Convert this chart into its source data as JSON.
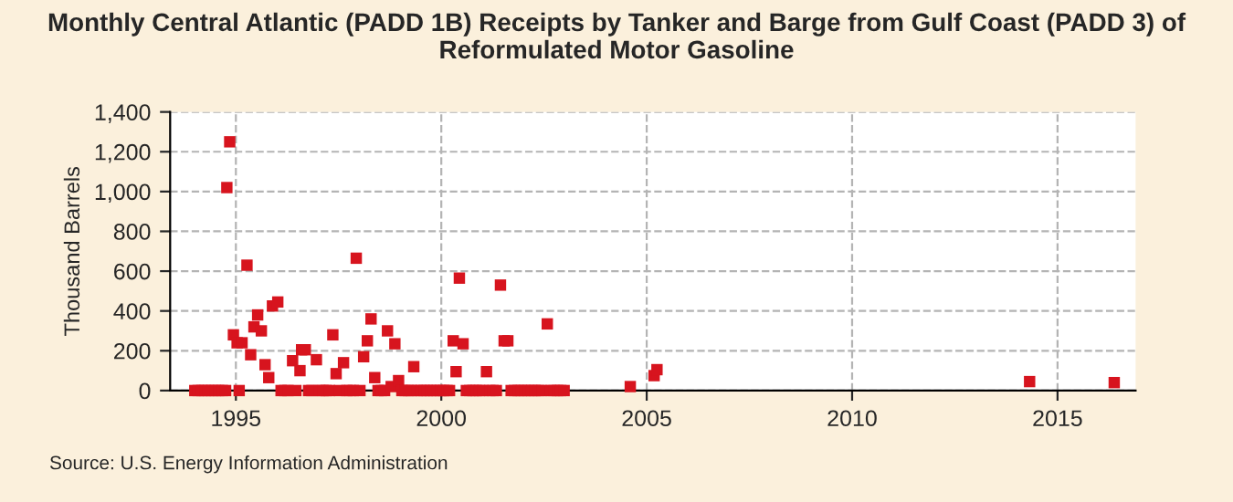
{
  "chart_data": {
    "type": "scatter",
    "title": "Monthly Central Atlantic (PADD 1B) Receipts by Tanker and Barge from Gulf Coast (PADD 3) of Reformulated Motor Gasoline",
    "ylabel": "Thousand Barrels",
    "annotations": [
      "Source: U.S. Energy Information Administration"
    ],
    "series": [
      {
        "color": "#d7141e",
        "x": [
          1994.0,
          1994.08,
          1994.17,
          1994.25,
          1994.33,
          1994.42,
          1994.5,
          1994.58,
          1994.67,
          1994.75,
          1994.78,
          1994.85,
          1994.94,
          1995.03,
          1995.08,
          1995.15,
          1995.27,
          1995.36,
          1995.44,
          1995.53,
          1995.62,
          1995.71,
          1995.8,
          1995.89,
          1996.02,
          1996.1,
          1996.19,
          1996.27,
          1996.38,
          1996.46,
          1996.56,
          1996.6,
          1996.69,
          1996.77,
          1996.85,
          1996.96,
          1997.04,
          1997.12,
          1997.2,
          1997.28,
          1997.36,
          1997.44,
          1997.52,
          1997.62,
          1997.7,
          1997.78,
          1997.86,
          1997.93,
          1998.02,
          1998.11,
          1998.2,
          1998.29,
          1998.38,
          1998.46,
          1998.54,
          1998.62,
          1998.69,
          1998.78,
          1998.87,
          1998.96,
          1999.04,
          1999.12,
          1999.2,
          1999.28,
          1999.33,
          1999.41,
          1999.5,
          1999.58,
          1999.66,
          1999.74,
          1999.82,
          1999.9,
          1999.98,
          2000.06,
          2000.14,
          2000.2,
          2000.29,
          2000.36,
          2000.44,
          2000.53,
          2000.61,
          2000.69,
          2000.77,
          2000.85,
          2000.93,
          2001.01,
          2001.1,
          2001.18,
          2001.26,
          2001.34,
          2001.44,
          2001.53,
          2001.62,
          2001.7,
          2001.78,
          2001.87,
          2001.95,
          2002.03,
          2002.12,
          2002.2,
          2002.28,
          2002.37,
          2002.45,
          2002.58,
          2002.66,
          2002.74,
          2002.83,
          2002.91,
          2002.99,
          2004.6,
          2005.18,
          2005.25,
          2014.32,
          2016.38
        ],
        "values": [
          0,
          0,
          0,
          0,
          0,
          0,
          0,
          0,
          0,
          0,
          1020,
          1250,
          280,
          240,
          0,
          240,
          630,
          180,
          320,
          380,
          300,
          130,
          65,
          425,
          445,
          0,
          0,
          0,
          150,
          0,
          100,
          205,
          205,
          0,
          0,
          155,
          0,
          0,
          0,
          0,
          280,
          85,
          0,
          140,
          0,
          0,
          0,
          665,
          0,
          170,
          250,
          360,
          65,
          0,
          0,
          0,
          300,
          20,
          235,
          50,
          0,
          0,
          0,
          0,
          120,
          0,
          0,
          0,
          0,
          0,
          0,
          0,
          0,
          0,
          0,
          0,
          250,
          95,
          565,
          235,
          0,
          0,
          0,
          0,
          0,
          0,
          95,
          0,
          0,
          0,
          530,
          250,
          250,
          0,
          0,
          0,
          0,
          0,
          0,
          0,
          0,
          0,
          0,
          335,
          0,
          0,
          0,
          0,
          0,
          20,
          75,
          105,
          45,
          40
        ]
      }
    ],
    "xlim": [
      1993.4,
      2016.9
    ],
    "xticks": [
      1995,
      2000,
      2005,
      2010,
      2015
    ],
    "ylim": [
      0,
      1400
    ],
    "yticks": [
      0,
      200,
      400,
      600,
      800,
      {
        "value": 1000,
        "label": "1,000"
      },
      {
        "value": 1200,
        "label": "1,200"
      },
      {
        "value": 1400,
        "label": "1,400"
      }
    ],
    "grid": true,
    "marker": "square",
    "legend": false
  }
}
